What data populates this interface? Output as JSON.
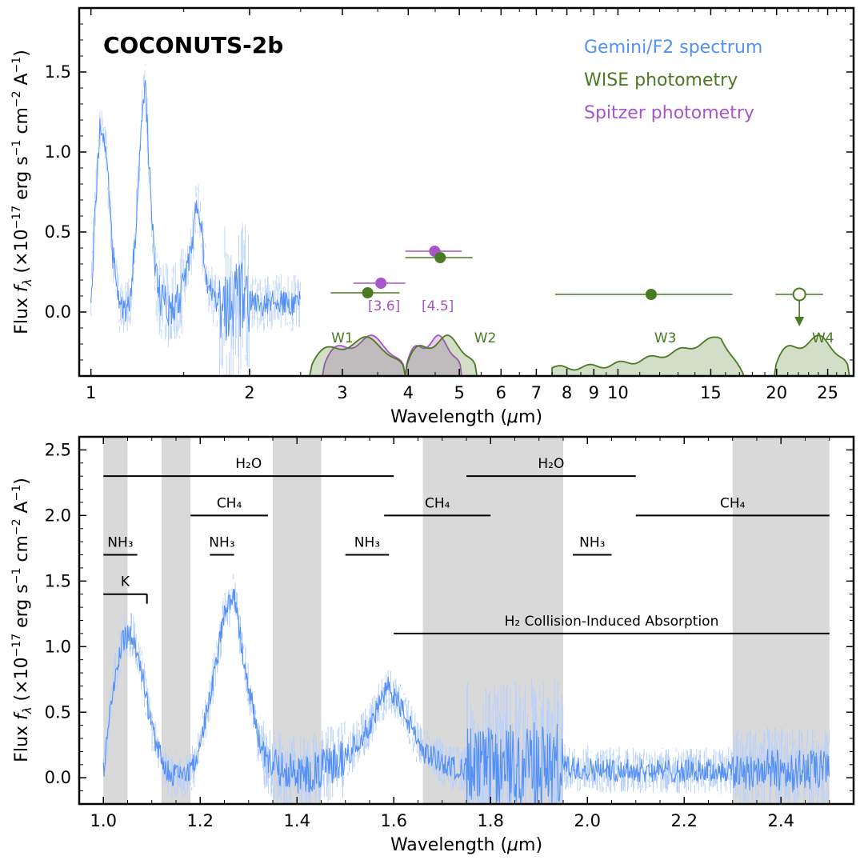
{
  "chart_data": [
    {
      "type": "line",
      "id": "top",
      "title": "COCONUTS-2b",
      "xlabel": "Wavelength (μm)",
      "ylabel": "Flux fλ (×10−17 erg s−1 cm−2 A−1)",
      "xscale": "log",
      "xlim": [
        0.95,
        28
      ],
      "ylim": [
        -0.4,
        1.9
      ],
      "xticks": [
        {
          "v": 1,
          "label": "1"
        },
        {
          "v": 2,
          "label": "2"
        },
        {
          "v": 3,
          "label": "3"
        },
        {
          "v": 4,
          "label": "4"
        },
        {
          "v": 5,
          "label": "5"
        },
        {
          "v": 6,
          "label": "6"
        },
        {
          "v": 7,
          "label": "7"
        },
        {
          "v": 8,
          "label": "8"
        },
        {
          "v": 9,
          "label": "9"
        },
        {
          "v": 10,
          "label": "10"
        },
        {
          "v": 15,
          "label": "15"
        },
        {
          "v": 20,
          "label": "20"
        },
        {
          "v": 25,
          "label": "25"
        }
      ],
      "yticks": [
        {
          "v": 0,
          "label": "0.0"
        },
        {
          "v": 0.5,
          "label": "0.5"
        },
        {
          "v": 1.0,
          "label": "1.0"
        },
        {
          "v": 1.5,
          "label": "1.5"
        }
      ],
      "legend": [
        {
          "label": "Gemini/F2 spectrum",
          "color": "#5591f5"
        },
        {
          "label": "WISE photometry",
          "color": "#4a7a22"
        },
        {
          "label": "Spitzer photometry",
          "color": "#a855cc"
        }
      ],
      "spectrum_envelope": {
        "x": [
          1.0,
          1.02,
          1.04,
          1.06,
          1.08,
          1.1,
          1.13,
          1.16,
          1.19,
          1.22,
          1.25,
          1.27,
          1.29,
          1.32,
          1.36,
          1.42,
          1.5,
          1.55,
          1.59,
          1.62,
          1.66,
          1.72,
          1.8,
          1.88,
          1.95,
          2.05,
          2.2,
          2.35,
          2.5
        ],
        "y": [
          0.05,
          0.7,
          1.15,
          1.12,
          0.8,
          0.35,
          0.05,
          0.0,
          0.1,
          0.6,
          1.25,
          1.4,
          0.9,
          0.3,
          0.05,
          0.02,
          0.15,
          0.4,
          0.7,
          0.5,
          0.2,
          0.08,
          0.05,
          0.1,
          0.08,
          0.06,
          0.05,
          0.06,
          0.05
        ]
      },
      "photometry": [
        {
          "system": "Spitzer",
          "band": "[3.6]",
          "x": 3.55,
          "xerr": [
            3.15,
            3.95
          ],
          "y": 0.18,
          "color": "#a855cc"
        },
        {
          "system": "Spitzer",
          "band": "[4.5]",
          "x": 4.49,
          "xerr": [
            3.95,
            5.05
          ],
          "y": 0.38,
          "color": "#a855cc"
        },
        {
          "system": "WISE",
          "band": "W1",
          "x": 3.35,
          "xerr": [
            2.85,
            3.85
          ],
          "y": 0.12,
          "color": "#4a7a22"
        },
        {
          "system": "WISE",
          "band": "W2",
          "x": 4.6,
          "xerr": [
            3.95,
            5.3
          ],
          "y": 0.34,
          "color": "#4a7a22"
        },
        {
          "system": "WISE",
          "band": "W3",
          "x": 11.56,
          "xerr": [
            7.6,
            16.5
          ],
          "y": 0.11,
          "color": "#4a7a22"
        },
        {
          "system": "WISE",
          "band": "W4",
          "x": 22.09,
          "xerr": [
            19.9,
            24.5
          ],
          "y": 0.11,
          "upper_limit": true,
          "color": "#4a7a22"
        }
      ],
      "filter_labels": [
        {
          "label": "W1",
          "x": 3.0,
          "y": -0.16,
          "color": "#4a7a22"
        },
        {
          "label": "[3.6]",
          "x": 3.6,
          "y": 0.04,
          "color": "#a855cc"
        },
        {
          "label": "[4.5]",
          "x": 4.55,
          "y": 0.04,
          "color": "#a855cc"
        },
        {
          "label": "W2",
          "x": 5.6,
          "y": -0.16,
          "color": "#4a7a22"
        },
        {
          "label": "W3",
          "x": 12.3,
          "y": -0.16,
          "color": "#4a7a22"
        },
        {
          "label": "W4",
          "x": 24.5,
          "y": -0.16,
          "color": "#4a7a22"
        }
      ]
    },
    {
      "type": "line",
      "id": "bottom",
      "xlabel": "Wavelength (μm)",
      "ylabel": "Flux fλ (×10−17 erg s−1 cm−2 A−1)",
      "xlim": [
        0.95,
        2.55
      ],
      "ylim": [
        -0.2,
        2.6
      ],
      "xticks": [
        {
          "v": 1.0,
          "label": "1.0"
        },
        {
          "v": 1.2,
          "label": "1.2"
        },
        {
          "v": 1.4,
          "label": "1.4"
        },
        {
          "v": 1.6,
          "label": "1.6"
        },
        {
          "v": 1.8,
          "label": "1.8"
        },
        {
          "v": 2.0,
          "label": "2.0"
        },
        {
          "v": 2.2,
          "label": "2.2"
        },
        {
          "v": 2.4,
          "label": "2.4"
        }
      ],
      "yticks": [
        {
          "v": 0,
          "label": "0.0"
        },
        {
          "v": 0.5,
          "label": "0.5"
        },
        {
          "v": 1.0,
          "label": "1.0"
        },
        {
          "v": 1.5,
          "label": "1.5"
        },
        {
          "v": 2.0,
          "label": "2.0"
        },
        {
          "v": 2.5,
          "label": "2.5"
        }
      ],
      "shaded_regions": [
        [
          1.0,
          1.05
        ],
        [
          1.12,
          1.18
        ],
        [
          1.35,
          1.45
        ],
        [
          1.66,
          1.95
        ],
        [
          2.3,
          2.5
        ]
      ],
      "spectrum_envelope": {
        "x": [
          1.0,
          1.02,
          1.04,
          1.06,
          1.08,
          1.1,
          1.13,
          1.16,
          1.19,
          1.22,
          1.25,
          1.27,
          1.29,
          1.32,
          1.36,
          1.42,
          1.5,
          1.55,
          1.59,
          1.62,
          1.66,
          1.72,
          1.8,
          1.88,
          1.95,
          2.05,
          2.2,
          2.35,
          2.5
        ],
        "y": [
          0.05,
          0.7,
          1.05,
          1.1,
          0.8,
          0.35,
          0.05,
          0.0,
          0.1,
          0.6,
          1.25,
          1.4,
          0.9,
          0.3,
          0.05,
          0.02,
          0.15,
          0.4,
          0.7,
          0.5,
          0.2,
          0.08,
          0.05,
          0.1,
          0.08,
          0.06,
          0.05,
          0.06,
          0.05
        ]
      },
      "features": [
        {
          "label": "H₂O",
          "x0": 1.0,
          "x1": 1.6,
          "y": 2.3
        },
        {
          "label": "H₂O",
          "x0": 1.75,
          "x1": 2.1,
          "y": 2.3
        },
        {
          "label": "CH₄",
          "x0": 1.18,
          "x1": 1.34,
          "y": 2.0
        },
        {
          "label": "CH₄",
          "x0": 1.58,
          "x1": 1.8,
          "y": 2.0
        },
        {
          "label": "CH₄",
          "x0": 2.1,
          "x1": 2.5,
          "y": 2.0
        },
        {
          "label": "NH₃",
          "x0": 1.0,
          "x1": 1.07,
          "y": 1.7
        },
        {
          "label": "NH₃",
          "x0": 1.22,
          "x1": 1.27,
          "y": 1.7
        },
        {
          "label": "NH₃",
          "x0": 1.5,
          "x1": 1.59,
          "y": 1.7
        },
        {
          "label": "NH₃",
          "x0": 1.97,
          "x1": 2.05,
          "y": 1.7
        },
        {
          "label": "K",
          "x0": 1.0,
          "x1": 1.09,
          "y": 1.4,
          "end_tick": true
        },
        {
          "label": "H₂ Collision-Induced Absorption",
          "x0": 1.6,
          "x1": 2.5,
          "y": 1.1
        }
      ]
    }
  ]
}
